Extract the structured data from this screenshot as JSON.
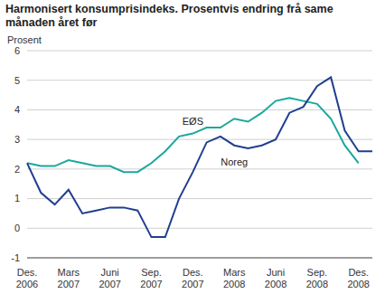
{
  "chart_data": {
    "type": "line",
    "title": "Harmonisert konsumprisindeks. Prosentvis endring frå same månaden året før",
    "y_label": "Prosent",
    "categories": [
      "Des. 2006",
      null,
      null,
      "Mars 2007",
      null,
      null,
      "Juni 2007",
      null,
      null,
      "Sep. 2007",
      null,
      null,
      "Des. 2007",
      null,
      null,
      "Mars 2008",
      null,
      null,
      "Juni 2008",
      null,
      null,
      "Sep. 2008",
      null,
      null,
      "Des. 2008",
      null
    ],
    "series": [
      {
        "name": "EØS",
        "color": "#1aa89c",
        "values": [
          2.2,
          2.1,
          2.1,
          2.3,
          2.2,
          2.1,
          2.1,
          1.9,
          1.9,
          2.2,
          2.6,
          3.1,
          3.2,
          3.4,
          3.4,
          3.7,
          3.6,
          3.9,
          4.3,
          4.4,
          4.3,
          4.2,
          3.7,
          2.8,
          2.2,
          null
        ]
      },
      {
        "name": "Noreg",
        "color": "#1f3f8f",
        "values": [
          2.2,
          1.2,
          0.8,
          1.3,
          0.5,
          0.6,
          0.7,
          0.7,
          0.6,
          -0.3,
          -0.3,
          1.0,
          1.9,
          2.9,
          3.1,
          2.8,
          2.7,
          2.8,
          3.0,
          3.9,
          4.1,
          4.8,
          5.1,
          3.3,
          2.6,
          2.6
        ]
      }
    ],
    "ylim": [
      -1,
      6
    ],
    "yticks": [
      -1,
      0,
      1,
      2,
      3,
      4,
      5,
      6
    ],
    "grid": true
  }
}
